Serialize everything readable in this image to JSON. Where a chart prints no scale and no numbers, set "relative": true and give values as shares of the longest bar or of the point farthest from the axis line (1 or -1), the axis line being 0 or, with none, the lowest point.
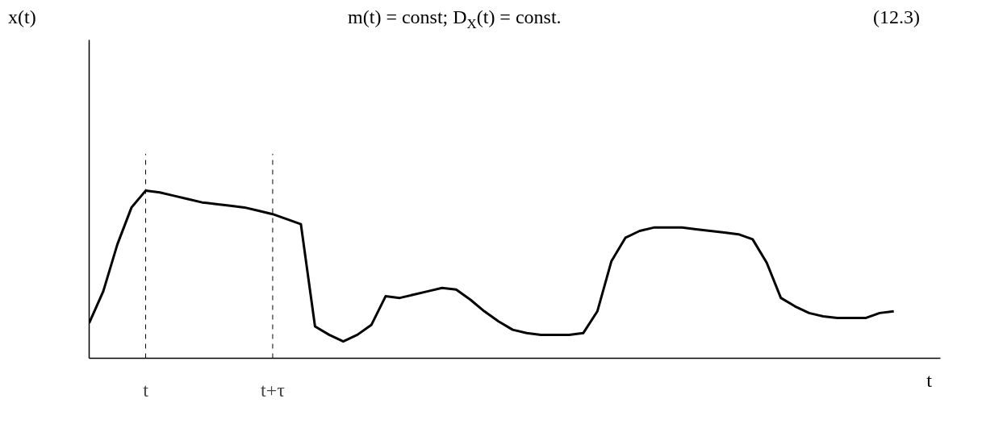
{
  "chart_data": {
    "type": "line",
    "relative": true,
    "title": "m(t) = const; D$_{X}$(t) = const.",
    "xlabel": "t",
    "annotations": [
      "x(t)",
      "(12.3)"
    ],
    "categories": [
      null,
      null,
      null,
      null,
      "t",
      null,
      null,
      null,
      null,
      null,
      null,
      null,
      null,
      "t+τ",
      null,
      null,
      null,
      null,
      null,
      null,
      null,
      null,
      null,
      null,
      null,
      null,
      null,
      null,
      null,
      null,
      null,
      null,
      null,
      null,
      null,
      null,
      null,
      null,
      null,
      null,
      null,
      null,
      null,
      null,
      null,
      null,
      null,
      null,
      null,
      null,
      null,
      null,
      null,
      null,
      null,
      null,
      null,
      null
    ],
    "ref_lines": [
      {
        "axis": "x",
        "value": "t",
        "line_style": "dashed",
        "color": "#000000"
      },
      {
        "axis": "x",
        "value": "t+τ",
        "line_style": "dashed",
        "color": "#000000"
      }
    ],
    "grid": false,
    "marker": "none",
    "line_style": "solid",
    "series": [
      {
        "color": "#000000",
        "values": [
          0.21,
          0.4,
          0.68,
          0.9,
          1.0,
          0.99,
          0.97,
          0.95,
          0.93,
          0.92,
          0.91,
          0.9,
          0.88,
          0.86,
          0.83,
          0.8,
          0.19,
          0.14,
          0.1,
          0.14,
          0.2,
          0.37,
          0.36,
          0.38,
          0.4,
          0.42,
          0.41,
          0.35,
          0.28,
          0.22,
          0.17,
          0.15,
          0.14,
          0.14,
          0.14,
          0.15,
          0.28,
          0.58,
          0.72,
          0.76,
          0.78,
          0.78,
          0.78,
          0.77,
          0.76,
          0.75,
          0.74,
          0.71,
          0.57,
          0.36,
          0.31,
          0.27,
          0.25,
          0.24,
          0.24,
          0.24,
          0.27,
          0.28
        ]
      }
    ]
  }
}
